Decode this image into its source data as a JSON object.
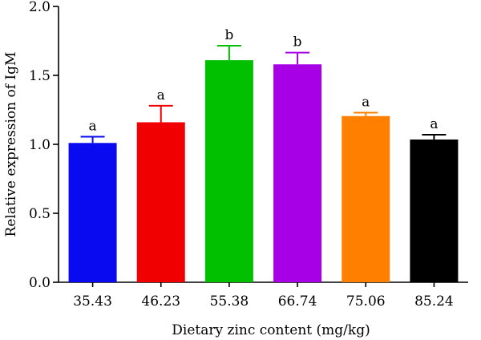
{
  "chart_data": {
    "type": "bar",
    "title": "",
    "xlabel": "Dietary zinc content (mg/kg)",
    "ylabel": "Relative expression of IgM",
    "ylim": [
      0,
      2.0
    ],
    "yticks": [
      "0.0",
      "0.5",
      "1.0",
      "1.5",
      "2.0"
    ],
    "categories": [
      "35.43",
      "46.23",
      "55.38",
      "66.74",
      "75.06",
      "85.24"
    ],
    "values": [
      1.01,
      1.16,
      1.61,
      1.58,
      1.205,
      1.035
    ],
    "errors": [
      0.045,
      0.12,
      0.105,
      0.085,
      0.025,
      0.035
    ],
    "significance": [
      "a",
      "a",
      "b",
      "b",
      "a",
      "a"
    ],
    "colors": [
      "#0a0af0",
      "#f00000",
      "#00c000",
      "#a800e6",
      "#ff8000",
      "#000000"
    ],
    "grid": false,
    "legend": "none"
  }
}
